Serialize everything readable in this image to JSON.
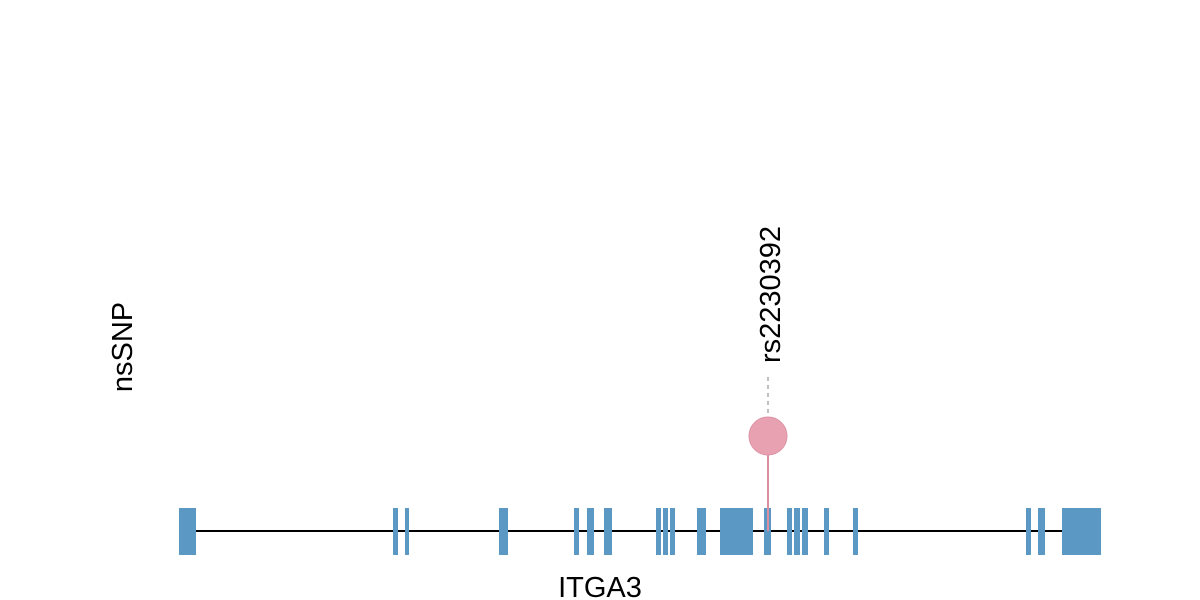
{
  "track_label": "nsSNP",
  "gene": {
    "name": "ITGA3",
    "exon_color": "#5b98c4",
    "intron_color": "#000000"
  },
  "variant": {
    "label": "rs2230392",
    "color": "#e8a1b0",
    "stem_color": "#d98ea2"
  }
}
